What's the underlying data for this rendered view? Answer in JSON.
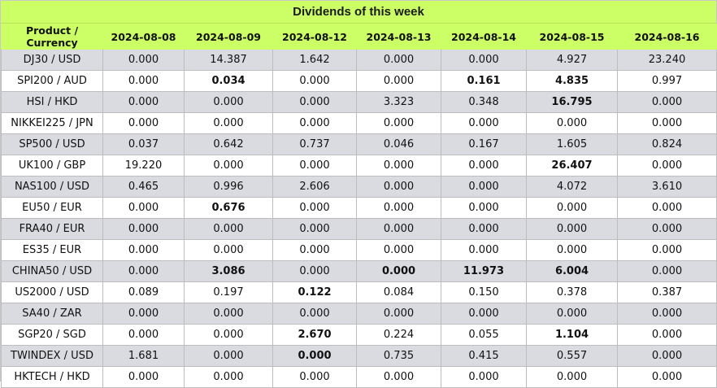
{
  "title": "Dividends of this week",
  "header": {
    "product_label": "Product / Currency",
    "dates": [
      "2024-08-08",
      "2024-08-09",
      "2024-08-12",
      "2024-08-13",
      "2024-08-14",
      "2024-08-15",
      "2024-08-16"
    ]
  },
  "rows": [
    {
      "product": "DJ30 / USD",
      "values": [
        "0.000",
        "14.387",
        "1.642",
        "0.000",
        "0.000",
        "4.927",
        "23.240"
      ],
      "bold": []
    },
    {
      "product": "SPI200 / AUD",
      "values": [
        "0.000",
        "0.034",
        "0.000",
        "0.000",
        "0.161",
        "4.835",
        "0.997"
      ],
      "bold": [
        1,
        4,
        5
      ]
    },
    {
      "product": "HSI / HKD",
      "values": [
        "0.000",
        "0.000",
        "0.000",
        "3.323",
        "0.348",
        "16.795",
        "0.000"
      ],
      "bold": [
        5
      ]
    },
    {
      "product": "NIKKEI225 / JPN",
      "values": [
        "0.000",
        "0.000",
        "0.000",
        "0.000",
        "0.000",
        "0.000",
        "0.000"
      ],
      "bold": []
    },
    {
      "product": "SP500 / USD",
      "values": [
        "0.037",
        "0.642",
        "0.737",
        "0.046",
        "0.167",
        "1.605",
        "0.824"
      ],
      "bold": []
    },
    {
      "product": "UK100 / GBP",
      "values": [
        "19.220",
        "0.000",
        "0.000",
        "0.000",
        "0.000",
        "26.407",
        "0.000"
      ],
      "bold": [
        5
      ]
    },
    {
      "product": "NAS100 / USD",
      "values": [
        "0.465",
        "0.996",
        "2.606",
        "0.000",
        "0.000",
        "4.072",
        "3.610"
      ],
      "bold": []
    },
    {
      "product": "EU50 / EUR",
      "values": [
        "0.000",
        "0.676",
        "0.000",
        "0.000",
        "0.000",
        "0.000",
        "0.000"
      ],
      "bold": [
        1
      ]
    },
    {
      "product": "FRA40 / EUR",
      "values": [
        "0.000",
        "0.000",
        "0.000",
        "0.000",
        "0.000",
        "0.000",
        "0.000"
      ],
      "bold": []
    },
    {
      "product": "ES35 / EUR",
      "values": [
        "0.000",
        "0.000",
        "0.000",
        "0.000",
        "0.000",
        "0.000",
        "0.000"
      ],
      "bold": []
    },
    {
      "product": "CHINA50 / USD",
      "values": [
        "0.000",
        "3.086",
        "0.000",
        "0.000",
        "11.973",
        "6.004",
        "0.000"
      ],
      "bold": [
        1,
        3,
        4,
        5
      ]
    },
    {
      "product": "US2000 / USD",
      "values": [
        "0.089",
        "0.197",
        "0.122",
        "0.084",
        "0.150",
        "0.378",
        "0.387"
      ],
      "bold": [
        2
      ]
    },
    {
      "product": "SA40 / ZAR",
      "values": [
        "0.000",
        "0.000",
        "0.000",
        "0.000",
        "0.000",
        "0.000",
        "0.000"
      ],
      "bold": []
    },
    {
      "product": "SGP20 / SGD",
      "values": [
        "0.000",
        "0.000",
        "2.670",
        "0.224",
        "0.055",
        "1.104",
        "0.000"
      ],
      "bold": [
        2,
        5
      ]
    },
    {
      "product": "TWINDEX / USD",
      "values": [
        "1.681",
        "0.000",
        "0.000",
        "0.735",
        "0.415",
        "0.557",
        "0.000"
      ],
      "bold": [
        2
      ]
    },
    {
      "product": "HKTECH / HKD",
      "values": [
        "0.000",
        "0.000",
        "0.000",
        "0.000",
        "0.000",
        "0.000",
        "0.000"
      ],
      "bold": []
    }
  ],
  "colors": {
    "header_bg": "#ccff66",
    "row_shade": "#d9dbe0",
    "row_plain": "#ffffff"
  }
}
